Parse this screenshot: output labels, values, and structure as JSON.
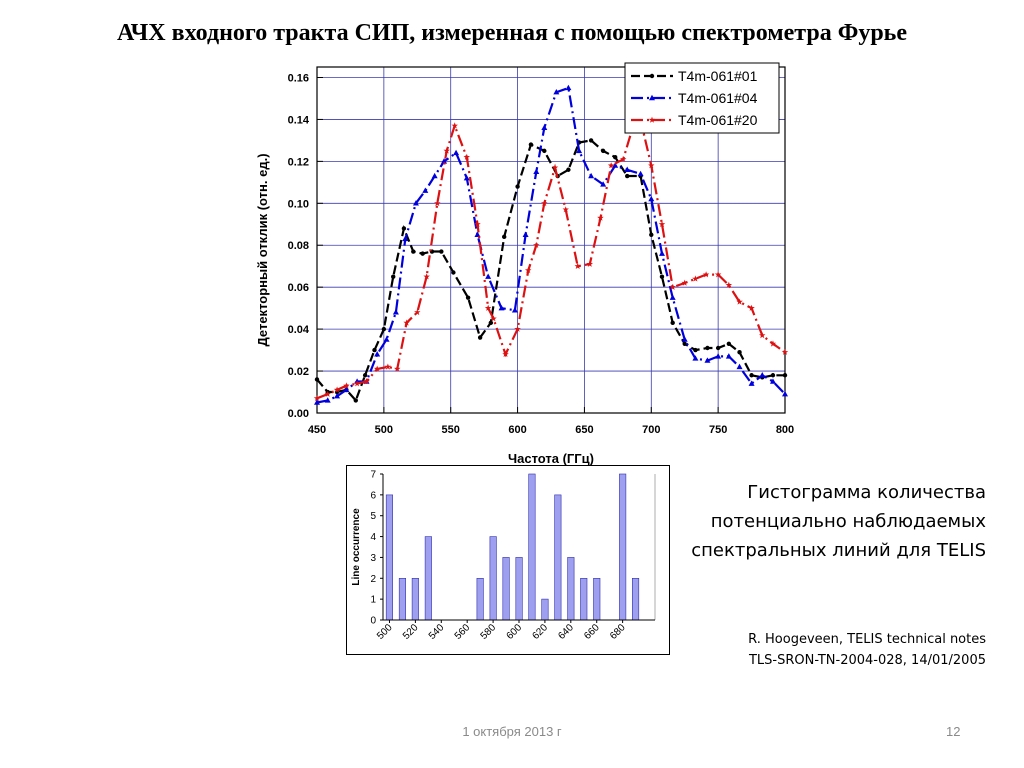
{
  "slide": {
    "title": "АЧХ входного тракта СИП, измеренная с помощью спектрометра Фурье",
    "caption_lines": [
      "Гистограмма количества",
      "потенциально наблюдаемых",
      "спектральных линий для TELIS"
    ],
    "reference_lines": [
      "R. Hoogeveen, TELIS technical notes",
      "TLS-SRON-TN-2004-028, 14/01/2005"
    ],
    "footer_date": "1 октября 2013 г",
    "page_number": "12"
  },
  "chart_data": [
    {
      "type": "line",
      "title": "",
      "xlabel": "Частота (ГГц)",
      "ylabel": "Детекторный отклик (отн. ед.)",
      "xlim": [
        450,
        800
      ],
      "ylim": [
        0,
        0.165
      ],
      "xticks": [
        "450",
        "500",
        "550",
        "600",
        "650",
        "700",
        "750",
        "800"
      ],
      "yticks": [
        "0.00",
        "0.02",
        "0.04",
        "0.06",
        "0.08",
        "0.10",
        "0.12",
        "0.14",
        "0.16"
      ],
      "grid": true,
      "legend_position": "top-right",
      "series": [
        {
          "name": "T4m-061#01",
          "color": "#000000",
          "marker": "dot",
          "points": [
            [
              450,
              0.016
            ],
            [
              458,
              0.01
            ],
            [
              465,
              0.01
            ],
            [
              472,
              0.011
            ],
            [
              479,
              0.006
            ],
            [
              486,
              0.018
            ],
            [
              493,
              0.03
            ],
            [
              500,
              0.04
            ],
            [
              507,
              0.065
            ],
            [
              515,
              0.088
            ],
            [
              522,
              0.077
            ],
            [
              529,
              0.076
            ],
            [
              536,
              0.077
            ],
            [
              543,
              0.077
            ],
            [
              552,
              0.067
            ],
            [
              563,
              0.055
            ],
            [
              572,
              0.036
            ],
            [
              580,
              0.043
            ],
            [
              590,
              0.084
            ],
            [
              600,
              0.108
            ],
            [
              610,
              0.128
            ],
            [
              620,
              0.125
            ],
            [
              630,
              0.113
            ],
            [
              638,
              0.116
            ],
            [
              646,
              0.129
            ],
            [
              655,
              0.13
            ],
            [
              664,
              0.125
            ],
            [
              673,
              0.122
            ],
            [
              682,
              0.113
            ],
            [
              692,
              0.113
            ],
            [
              700,
              0.085
            ],
            [
              708,
              0.065
            ],
            [
              716,
              0.043
            ],
            [
              725,
              0.033
            ],
            [
              733,
              0.03
            ],
            [
              742,
              0.031
            ],
            [
              750,
              0.031
            ],
            [
              758,
              0.033
            ],
            [
              766,
              0.029
            ],
            [
              775,
              0.018
            ],
            [
              783,
              0.017
            ],
            [
              791,
              0.018
            ],
            [
              800,
              0.018
            ]
          ]
        },
        {
          "name": "T4m-061#04",
          "color": "#0000dd",
          "marker": "triangle",
          "points": [
            [
              450,
              0.005
            ],
            [
              458,
              0.006
            ],
            [
              465,
              0.008
            ],
            [
              472,
              0.011
            ],
            [
              480,
              0.015
            ],
            [
              487,
              0.015
            ],
            [
              495,
              0.028
            ],
            [
              502,
              0.035
            ],
            [
              509,
              0.048
            ],
            [
              516,
              0.083
            ],
            [
              524,
              0.1
            ],
            [
              531,
              0.106
            ],
            [
              538,
              0.113
            ],
            [
              545,
              0.12
            ],
            [
              554,
              0.124
            ],
            [
              562,
              0.112
            ],
            [
              570,
              0.085
            ],
            [
              578,
              0.065
            ],
            [
              588,
              0.05
            ],
            [
              598,
              0.049
            ],
            [
              606,
              0.085
            ],
            [
              614,
              0.115
            ],
            [
              620,
              0.136
            ],
            [
              629,
              0.153
            ],
            [
              638,
              0.155
            ],
            [
              646,
              0.125
            ],
            [
              655,
              0.113
            ],
            [
              664,
              0.109
            ],
            [
              673,
              0.118
            ],
            [
              682,
              0.116
            ],
            [
              692,
              0.114
            ],
            [
              700,
              0.102
            ],
            [
              708,
              0.076
            ],
            [
              716,
              0.055
            ],
            [
              725,
              0.035
            ],
            [
              733,
              0.026
            ],
            [
              742,
              0.025
            ],
            [
              750,
              0.027
            ],
            [
              758,
              0.027
            ],
            [
              766,
              0.022
            ],
            [
              775,
              0.014
            ],
            [
              783,
              0.018
            ],
            [
              791,
              0.015
            ],
            [
              800,
              0.009
            ]
          ]
        },
        {
          "name": "T4m-061#20",
          "color": "#dd1111",
          "marker": "star",
          "points": [
            [
              450,
              0.007
            ],
            [
              458,
              0.009
            ],
            [
              465,
              0.011
            ],
            [
              472,
              0.013
            ],
            [
              480,
              0.014
            ],
            [
              487,
              0.015
            ],
            [
              495,
              0.021
            ],
            [
              503,
              0.022
            ],
            [
              510,
              0.021
            ],
            [
              517,
              0.043
            ],
            [
              525,
              0.048
            ],
            [
              532,
              0.065
            ],
            [
              540,
              0.1
            ],
            [
              547,
              0.125
            ],
            [
              553,
              0.137
            ],
            [
              562,
              0.122
            ],
            [
              570,
              0.09
            ],
            [
              578,
              0.05
            ],
            [
              582,
              0.045
            ],
            [
              591,
              0.028
            ],
            [
              600,
              0.04
            ],
            [
              608,
              0.068
            ],
            [
              614,
              0.08
            ],
            [
              620,
              0.1
            ],
            [
              628,
              0.117
            ],
            [
              636,
              0.097
            ],
            [
              645,
              0.07
            ],
            [
              654,
              0.071
            ],
            [
              662,
              0.093
            ],
            [
              670,
              0.118
            ],
            [
              679,
              0.121
            ],
            [
              686,
              0.136
            ],
            [
              693,
              0.137
            ],
            [
              700,
              0.118
            ],
            [
              708,
              0.09
            ],
            [
              716,
              0.06
            ],
            [
              725,
              0.062
            ],
            [
              733,
              0.064
            ],
            [
              741,
              0.066
            ],
            [
              750,
              0.066
            ],
            [
              758,
              0.061
            ],
            [
              766,
              0.053
            ],
            [
              775,
              0.05
            ],
            [
              783,
              0.037
            ],
            [
              791,
              0.033
            ],
            [
              800,
              0.029
            ]
          ]
        }
      ]
    },
    {
      "type": "bar",
      "title": "",
      "xlabel": "",
      "ylabel": "Line occurrence",
      "ylim": [
        0,
        7
      ],
      "yticks": [
        "0",
        "1",
        "2",
        "3",
        "4",
        "5",
        "6",
        "7"
      ],
      "xtick_labels": [
        "500",
        "520",
        "540",
        "560",
        "580",
        "600",
        "620",
        "640",
        "660",
        "680"
      ],
      "categories": [
        500,
        510,
        520,
        530,
        540,
        550,
        560,
        570,
        580,
        590,
        600,
        610,
        620,
        630,
        640,
        650,
        660,
        670,
        680,
        690,
        700
      ],
      "values": [
        6,
        2,
        2,
        4,
        0,
        0,
        0,
        2,
        4,
        3,
        3,
        7,
        1,
        6,
        3,
        2,
        2,
        0,
        7,
        2,
        0
      ],
      "bar_color": "#9f9ff0"
    }
  ]
}
